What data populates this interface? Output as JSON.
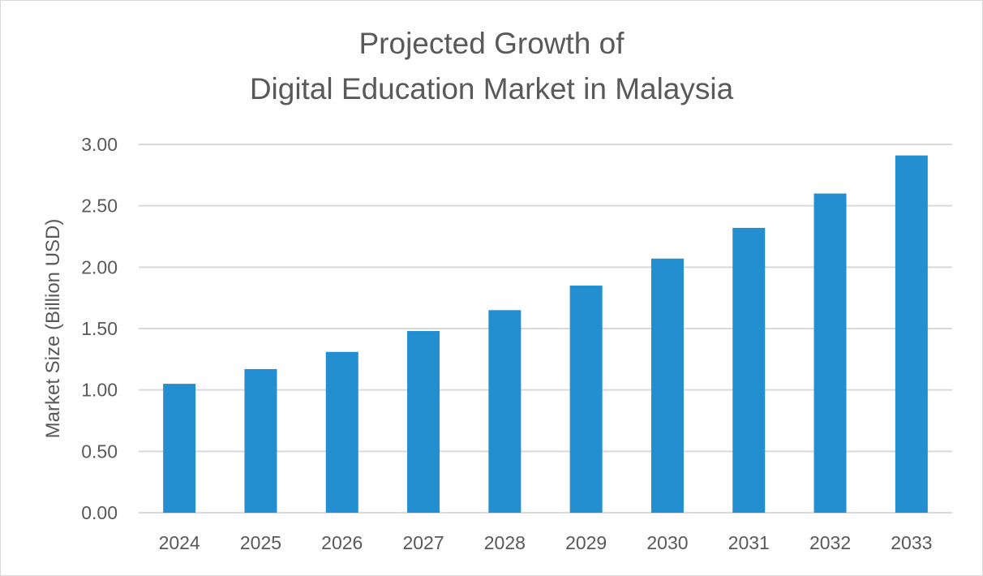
{
  "chart_data": {
    "type": "bar",
    "title_line1": "Projected Growth of",
    "title_line2": "Digital Education Market in Malaysia",
    "xlabel": "",
    "ylabel": "Market Size (Billion USD)",
    "categories": [
      "2024",
      "2025",
      "2026",
      "2027",
      "2028",
      "2029",
      "2030",
      "2031",
      "2032",
      "2033"
    ],
    "values": [
      1.05,
      1.17,
      1.31,
      1.48,
      1.65,
      1.85,
      2.07,
      2.32,
      2.6,
      2.91
    ],
    "ylim": [
      0,
      3
    ],
    "yticks": [
      "0.00",
      "0.50",
      "1.00",
      "1.50",
      "2.00",
      "2.50",
      "3.00"
    ],
    "grid": true,
    "legend": "none",
    "bar_color": "#238fd0",
    "grid_color": "#d9d9d9"
  }
}
